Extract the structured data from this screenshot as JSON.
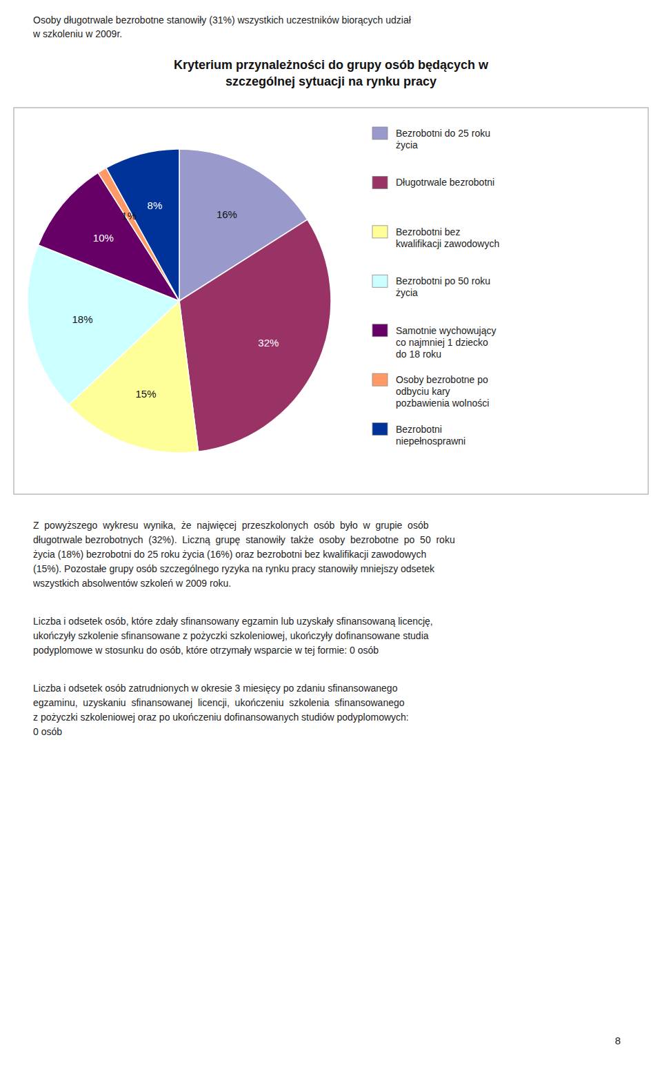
{
  "chart_data": {
    "type": "pie",
    "title": "Kryterium przynależności do grupy osób będących w\nszczególnej sytuacji na rynku pracy",
    "categories": [
      "Bezrobotni do 25 roku\nżycia",
      "Długotrwale bezrobotni",
      "Bezrobotni bez\nkwalifikacji zawodowych",
      "Bezrobotni po 50 roku\nżycia",
      "Samotnie wychowujący\nco najmniej 1 dziecko\ndo 18 roku",
      "Osoby bezrobotne po\nodbyciu kary\npozbawienia wolności",
      "Bezrobotni\nniepełnosprawni"
    ],
    "values": [
      16,
      32,
      15,
      18,
      10,
      1,
      8
    ],
    "value_labels": [
      "16%",
      "32%",
      "15%",
      "18%",
      "10%",
      "1%",
      "8%"
    ],
    "colors": [
      "#9999CC",
      "#993366",
      "#FFFF99",
      "#CCFFFF",
      "#660066",
      "#FF9966",
      "#003399"
    ],
    "data_labels": true,
    "legend": "right",
    "annotations": [
      "Osoby długotrwale bezrobotne stanowiły (31%) wszystkich uczestników biorących udział\nw szkoleniu w 2009r.",
      "Z  powyższego  wykresu  wynika,  że  najwięcej  przeszkolonych  osób  było  w  grupie  osób\ndługotrwale bezrobotnych  (32%).  Liczną  grupę  stanowiły  także  osoby  bezrobotne  po  50  roku\nżycia (18%) bezrobotni do 25 roku życia (16%) oraz bezrobotni bez kwalifikacji zawodowych\n(15%). Pozostałe grupy osób szczególnego ryzyka na rynku pracy stanowiły mniejszy odsetek\nwszystkich absolwentów szkoleń w 2009 roku.",
      "Liczba i odsetek osób, które zdały sfinansowany egzamin lub uzyskały sfinansowaną licencję,\nukończyły szkolenie sfinansowane z pożyczki szkoleniowej, ukończyły dofinansowane studia\npodyplomowe w stosunku do osób, które otrzymały wsparcie w tej formie: 0 osób",
      "Liczba i odsetek osób zatrudnionych w okresie 3 miesięcy po zdaniu sfinansowanego\negzaminu,  uzyskaniu  sfinansowanej  licencji,  ukończeniu  szkolenia  sfinansowanego\nz pożyczki szkoleniowej oraz po ukończeniu dofinansowanych studiów podyplomowych:\n0 osób",
      "8"
    ]
  }
}
